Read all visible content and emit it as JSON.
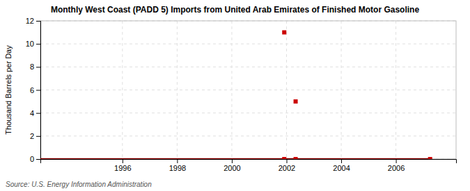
{
  "chart_data": {
    "type": "line",
    "title": "Monthly West Coast (PADD 5) Imports from United Arab Emirates of Finished Motor Gasoline",
    "ylabel": "Thousand Barrels per Day",
    "source": "Source: U.S. Energy Information Administration",
    "xlim": [
      1993.0,
      2008.2
    ],
    "xticks": [
      1996,
      1998,
      2000,
      2002,
      2004,
      2006
    ],
    "ylim": [
      0,
      12
    ],
    "yticks": [
      0,
      2,
      4,
      6,
      8,
      10,
      12
    ],
    "grid": true,
    "series": [
      {
        "type": "line",
        "color": "#8b0000",
        "x": [
          1993.0,
          2007.25
        ],
        "values": [
          0,
          0
        ]
      },
      {
        "type": "scatter",
        "marker": "square",
        "color": "#cc0000",
        "x": [
          2001.917,
          2002.333
        ],
        "values": [
          11,
          5
        ]
      },
      {
        "type": "scatter",
        "marker": "square",
        "color": "#cc0000",
        "x": [
          2001.917,
          2002.333,
          2007.25
        ],
        "values": [
          0,
          0,
          0
        ]
      }
    ]
  }
}
